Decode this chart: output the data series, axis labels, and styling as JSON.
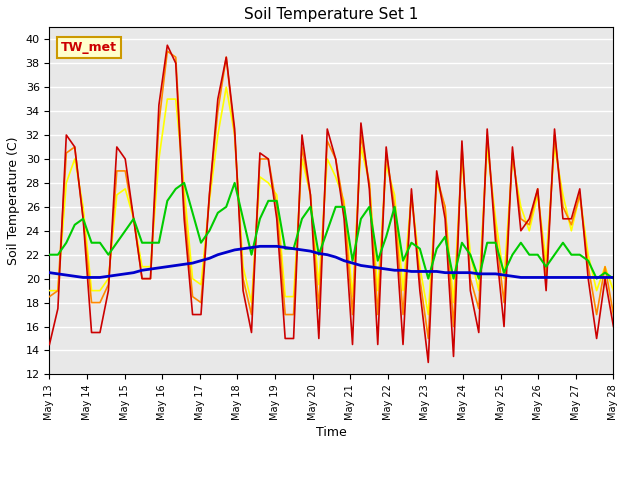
{
  "title": "Soil Temperature Set 1",
  "xlabel": "Time",
  "ylabel": "Soil Temperature (C)",
  "ylim": [
    12,
    41
  ],
  "yticks": [
    12,
    14,
    16,
    18,
    20,
    22,
    24,
    26,
    28,
    30,
    32,
    34,
    36,
    38,
    40
  ],
  "annotation_text": "TW_met",
  "annotation_color": "#cc0000",
  "annotation_bg": "#ffffcc",
  "annotation_border": "#cc9900",
  "series_colors": {
    "SoilT1_02": "#cc0000",
    "SoilT1_04": "#ff8800",
    "SoilT1_08": "#ffff00",
    "SoilT1_16": "#00cc00",
    "SoilT1_32": "#0000cc"
  },
  "xtick_labels": [
    "May 13",
    "May 14",
    "May 15",
    "May 16",
    "May 17",
    "May 18",
    "May 19",
    "May 20",
    "May 21",
    "May 22",
    "May 23",
    "May 24",
    "May 25",
    "May 26",
    "May 27",
    "May 28"
  ],
  "SoilT1_02": [
    14.5,
    17.5,
    32.0,
    31.0,
    25.0,
    15.5,
    15.5,
    19.0,
    31.0,
    30.0,
    25.0,
    20.0,
    20.0,
    34.5,
    39.5,
    38.0,
    25.0,
    17.0,
    17.0,
    27.0,
    35.0,
    38.5,
    32.5,
    19.0,
    15.5,
    30.5,
    30.0,
    25.0,
    15.0,
    15.0,
    32.0,
    27.0,
    15.0,
    32.5,
    30.0,
    25.0,
    14.5,
    33.0,
    27.5,
    14.5,
    31.0,
    25.0,
    14.5,
    27.5,
    19.0,
    13.0,
    29.0,
    25.0,
    13.5,
    31.5,
    19.0,
    15.5,
    32.5,
    23.0,
    16.0,
    31.0,
    24.0,
    25.0,
    27.5,
    19.0,
    32.5,
    25.0,
    25.0,
    27.5,
    20.0,
    15.0,
    20.0,
    16.0
  ],
  "SoilT1_04": [
    18.5,
    19.0,
    30.5,
    31.0,
    25.0,
    18.0,
    18.0,
    19.5,
    29.0,
    29.0,
    25.0,
    20.0,
    20.0,
    33.0,
    39.0,
    38.5,
    26.0,
    18.5,
    18.0,
    27.0,
    34.0,
    38.5,
    32.0,
    20.0,
    17.0,
    30.0,
    30.0,
    26.0,
    17.0,
    17.0,
    31.0,
    27.0,
    17.5,
    31.5,
    30.0,
    26.0,
    17.0,
    32.0,
    28.0,
    17.0,
    30.5,
    26.0,
    17.0,
    27.0,
    20.0,
    15.0,
    28.5,
    26.0,
    16.0,
    31.0,
    20.0,
    17.5,
    32.0,
    24.0,
    18.0,
    30.5,
    25.0,
    24.5,
    27.5,
    20.0,
    32.0,
    26.0,
    24.5,
    27.0,
    21.0,
    17.0,
    21.0,
    17.0
  ],
  "SoilT1_08": [
    19.0,
    19.0,
    28.0,
    30.0,
    26.0,
    19.0,
    19.0,
    20.0,
    27.0,
    27.5,
    25.0,
    21.0,
    21.0,
    30.0,
    35.0,
    35.0,
    27.5,
    20.0,
    19.5,
    26.5,
    32.0,
    36.0,
    32.0,
    21.0,
    18.0,
    28.5,
    28.0,
    27.0,
    18.5,
    18.5,
    30.0,
    27.0,
    19.5,
    30.0,
    28.5,
    26.5,
    18.5,
    31.0,
    28.0,
    19.0,
    29.5,
    27.0,
    19.0,
    27.0,
    21.0,
    17.0,
    28.0,
    26.0,
    18.0,
    30.0,
    22.0,
    19.0,
    31.0,
    25.0,
    20.0,
    30.0,
    26.0,
    24.0,
    27.0,
    21.5,
    31.0,
    27.0,
    24.0,
    27.0,
    22.0,
    19.0,
    21.0,
    19.0
  ],
  "SoilT1_16": [
    22.0,
    22.0,
    23.0,
    24.5,
    25.0,
    23.0,
    23.0,
    22.0,
    23.0,
    24.0,
    25.0,
    23.0,
    23.0,
    23.0,
    26.5,
    27.5,
    28.0,
    25.5,
    23.0,
    24.0,
    25.5,
    26.0,
    28.0,
    25.0,
    22.0,
    25.0,
    26.5,
    26.5,
    22.5,
    22.5,
    25.0,
    26.0,
    22.0,
    24.0,
    26.0,
    26.0,
    21.5,
    25.0,
    26.0,
    21.5,
    23.5,
    26.0,
    21.5,
    23.0,
    22.5,
    20.0,
    22.5,
    23.5,
    20.0,
    23.0,
    22.0,
    20.0,
    23.0,
    23.0,
    20.5,
    22.0,
    23.0,
    22.0,
    22.0,
    21.0,
    22.0,
    23.0,
    22.0,
    22.0,
    21.5,
    20.0,
    20.5,
    20.0
  ],
  "SoilT1_32": [
    20.5,
    20.4,
    20.3,
    20.2,
    20.1,
    20.1,
    20.1,
    20.2,
    20.3,
    20.4,
    20.5,
    20.7,
    20.8,
    20.9,
    21.0,
    21.1,
    21.2,
    21.3,
    21.5,
    21.7,
    22.0,
    22.2,
    22.4,
    22.5,
    22.6,
    22.7,
    22.7,
    22.7,
    22.6,
    22.5,
    22.4,
    22.3,
    22.1,
    22.0,
    21.8,
    21.5,
    21.3,
    21.1,
    21.0,
    20.9,
    20.8,
    20.7,
    20.7,
    20.6,
    20.6,
    20.6,
    20.6,
    20.5,
    20.5,
    20.5,
    20.5,
    20.4,
    20.4,
    20.4,
    20.3,
    20.2,
    20.1,
    20.1,
    20.1,
    20.1,
    20.1,
    20.1,
    20.1,
    20.1,
    20.1,
    20.1,
    20.1,
    20.1
  ]
}
